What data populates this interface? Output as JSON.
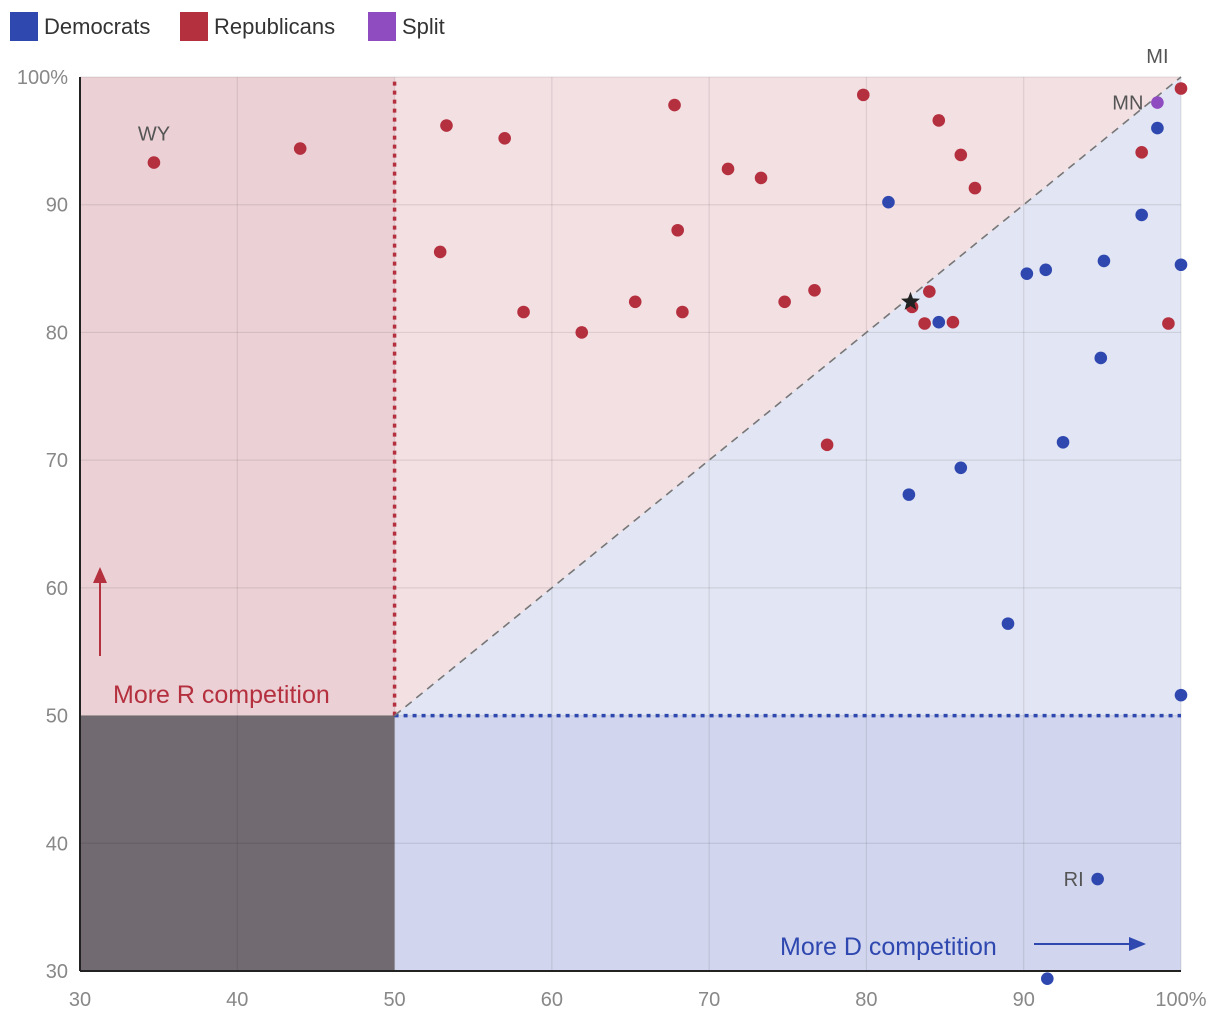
{
  "chart_data": {
    "type": "scatter",
    "title": "",
    "xlabel": "",
    "ylabel": "",
    "xlim": [
      30,
      100
    ],
    "ylim": [
      30,
      100
    ],
    "x_ticks": [
      "30",
      "40",
      "50",
      "60",
      "70",
      "80",
      "90",
      "100%"
    ],
    "y_ticks": [
      "30",
      "40",
      "50",
      "60",
      "70",
      "80",
      "90",
      "100%"
    ],
    "grid": true,
    "legend_position": "top-left",
    "legend": [
      {
        "label": "Democrats",
        "color": "#2f48b0"
      },
      {
        "label": "Republicans",
        "color": "#b5303f"
      },
      {
        "label": "Split",
        "color": "#8e4cc0"
      }
    ],
    "colors": {
      "dem": "#2f48b0",
      "rep": "#b5303f",
      "split": "#8e4cc0",
      "r_zone": "#ebd1d5",
      "r_competition_zone": "#f3e0e3",
      "d_competition_zone": "#e2e5f3",
      "d_zone": "#d1d6ee",
      "neither_zone": "#716b71"
    },
    "annotations": {
      "more_r": "More R competition",
      "more_d": "More D competition"
    },
    "reference_lines": [
      {
        "type": "vertical",
        "x": 50,
        "from_y": 50,
        "to_y": 100,
        "color": "#b5303f",
        "style": "dotted"
      },
      {
        "type": "horizontal",
        "y": 50,
        "from_x": 50,
        "to_x": 100,
        "color": "#2f48b0",
        "style": "dotted"
      },
      {
        "type": "diagonal",
        "from": [
          50,
          50
        ],
        "to": [
          100,
          100
        ],
        "color": "#777777",
        "style": "dashed"
      }
    ],
    "marker": {
      "x": 82.8,
      "y": 82.4,
      "symbol": "star"
    },
    "series": [
      {
        "name": "Democrats",
        "color": "#2f48b0",
        "points": [
          {
            "x": 81.4,
            "y": 90.2
          },
          {
            "x": 84.6,
            "y": 80.8
          },
          {
            "x": 82.7,
            "y": 67.3
          },
          {
            "x": 86.0,
            "y": 69.4
          },
          {
            "x": 89.0,
            "y": 57.2
          },
          {
            "x": 90.2,
            "y": 84.6
          },
          {
            "x": 91.4,
            "y": 84.9
          },
          {
            "x": 92.5,
            "y": 71.4
          },
          {
            "x": 94.9,
            "y": 78.0
          },
          {
            "x": 95.1,
            "y": 85.6
          },
          {
            "x": 97.5,
            "y": 89.2
          },
          {
            "x": 98.5,
            "y": 96.0
          },
          {
            "x": 100.0,
            "y": 85.3
          },
          {
            "x": 100.0,
            "y": 51.6
          },
          {
            "x": 94.7,
            "y": 37.2,
            "label": "RI"
          },
          {
            "x": 91.5,
            "y": 29.4
          }
        ]
      },
      {
        "name": "Republicans",
        "color": "#b5303f",
        "points": [
          {
            "x": 34.7,
            "y": 93.3,
            "label": "WY"
          },
          {
            "x": 44.0,
            "y": 94.4
          },
          {
            "x": 53.3,
            "y": 96.2
          },
          {
            "x": 57.0,
            "y": 95.2
          },
          {
            "x": 52.9,
            "y": 86.3
          },
          {
            "x": 58.2,
            "y": 81.6
          },
          {
            "x": 61.9,
            "y": 80.0
          },
          {
            "x": 65.3,
            "y": 82.4
          },
          {
            "x": 67.8,
            "y": 97.8
          },
          {
            "x": 68.0,
            "y": 88.0
          },
          {
            "x": 68.3,
            "y": 81.6
          },
          {
            "x": 71.2,
            "y": 92.8
          },
          {
            "x": 73.3,
            "y": 92.1
          },
          {
            "x": 74.8,
            "y": 82.4
          },
          {
            "x": 76.7,
            "y": 83.3
          },
          {
            "x": 77.5,
            "y": 71.2
          },
          {
            "x": 79.8,
            "y": 98.6
          },
          {
            "x": 82.9,
            "y": 82.0
          },
          {
            "x": 83.7,
            "y": 80.7
          },
          {
            "x": 84.0,
            "y": 83.2
          },
          {
            "x": 84.6,
            "y": 96.6
          },
          {
            "x": 85.5,
            "y": 80.8
          },
          {
            "x": 86.0,
            "y": 93.9
          },
          {
            "x": 86.9,
            "y": 91.3
          },
          {
            "x": 97.5,
            "y": 94.1
          },
          {
            "x": 99.2,
            "y": 80.7
          },
          {
            "x": 100.0,
            "y": 99.1
          }
        ]
      },
      {
        "name": "Split",
        "color": "#8e4cc0",
        "points": [
          {
            "x": 98.5,
            "y": 98.0,
            "label": "MN"
          }
        ]
      }
    ],
    "point_labels": [
      {
        "text": "MI",
        "x": 98.5,
        "y": 101.1
      }
    ]
  }
}
